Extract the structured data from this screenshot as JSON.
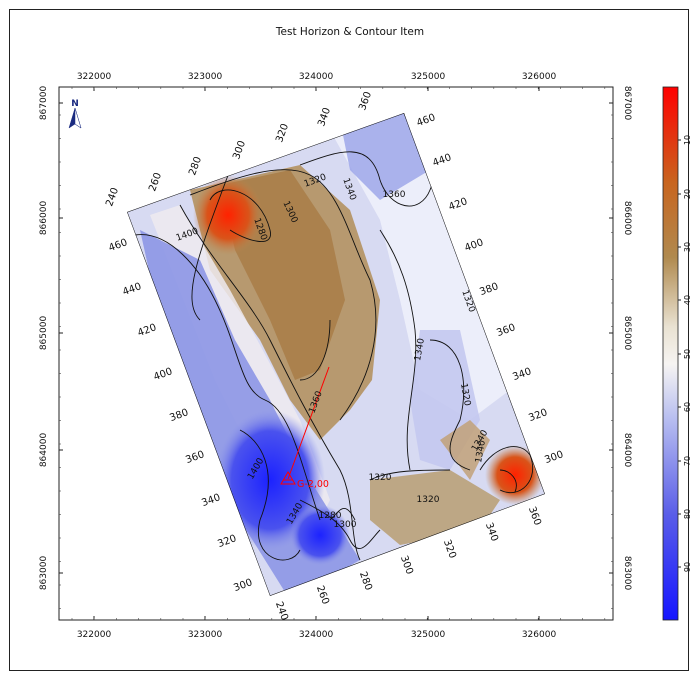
{
  "chart_data": {
    "type": "heatmap",
    "title": "Test Horizon & Contour Item",
    "x_ticks": [
      "322000",
      "323000",
      "324000",
      "325000",
      "326000"
    ],
    "y_ticks": [
      "863000",
      "864000",
      "865000",
      "866000",
      "867000"
    ],
    "colorbar": {
      "ticks": [
        "10",
        "20",
        "30",
        "40",
        "50",
        "60",
        "70",
        "80",
        "90"
      ],
      "range": [
        0,
        100
      ],
      "colors": [
        "#ff0000",
        "#c86a2a",
        "#b8955a",
        "#efe8de",
        "#d8dcf6",
        "#7f88e4",
        "#1f1fff"
      ]
    },
    "north_label": "N",
    "well_label": "G-2,00",
    "contour_values": [
      "1320",
      "1340",
      "1360",
      "1300",
      "1280",
      "1400",
      "1340",
      "1320",
      "1360",
      "1340",
      "1340",
      "1320",
      "1320",
      "1300",
      "1280",
      "1400",
      "1340",
      "1320"
    ],
    "grid_labels_top": [
      "240",
      "260",
      "280",
      "300",
      "320",
      "340",
      "360"
    ],
    "grid_labels_right": [
      "460",
      "440",
      "420",
      "400",
      "380",
      "360",
      "340",
      "320",
      "300"
    ],
    "grid_labels_left": [
      "460",
      "440",
      "420",
      "400",
      "380",
      "360",
      "340",
      "320",
      "300"
    ],
    "grid_labels_bottom": [
      "240",
      "260",
      "280",
      "300",
      "320",
      "340",
      "360"
    ]
  }
}
